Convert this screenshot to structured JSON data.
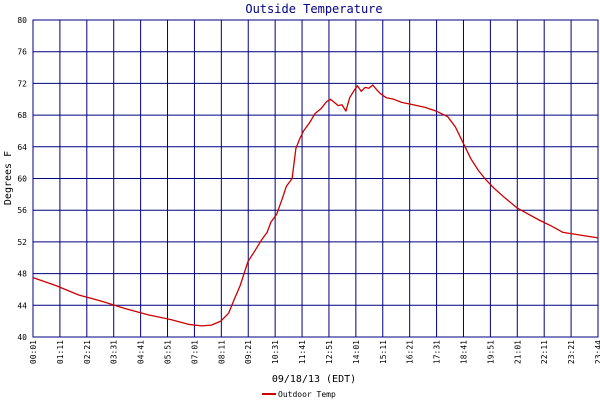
{
  "chart_data": {
    "type": "line",
    "title": "Outside Temperature",
    "xlabel": "09/18/13 (EDT)",
    "ylabel": "Degrees F",
    "ylim": [
      40,
      80
    ],
    "yticks": [
      40,
      44,
      48,
      52,
      56,
      60,
      64,
      68,
      72,
      76,
      80
    ],
    "xlim": [
      "00:01",
      "23:44"
    ],
    "xticks": [
      "00:01",
      "01:11",
      "02:21",
      "03:31",
      "04:41",
      "05:51",
      "07:01",
      "08:11",
      "09:21",
      "10:31",
      "11:41",
      "12:51",
      "14:01",
      "15:11",
      "16:21",
      "17:31",
      "18:41",
      "19:51",
      "21:01",
      "22:11",
      "23:21",
      "23:44"
    ],
    "grid": true,
    "legend_position": "bottom-left",
    "colors": {
      "line": "#cc0000",
      "grid": "#000080",
      "title": "#000080"
    },
    "series": [
      {
        "name": "Outdoor Temp",
        "x": [
          "00:01",
          "01:00",
          "02:00",
          "03:00",
          "04:00",
          "05:00",
          "06:00",
          "06:45",
          "07:20",
          "07:45",
          "08:10",
          "08:30",
          "08:45",
          "09:00",
          "09:20",
          "09:40",
          "09:55",
          "10:10",
          "10:20",
          "10:35",
          "10:50",
          "11:00",
          "11:15",
          "11:25",
          "11:35",
          "11:45",
          "12:00",
          "12:15",
          "12:30",
          "12:45",
          "12:55",
          "13:05",
          "13:15",
          "13:25",
          "13:35",
          "13:45",
          "13:55",
          "14:05",
          "14:15",
          "14:25",
          "14:35",
          "14:45",
          "14:55",
          "15:05",
          "15:20",
          "15:40",
          "16:00",
          "16:30",
          "17:00",
          "17:30",
          "18:00",
          "18:20",
          "18:40",
          "19:00",
          "19:20",
          "19:40",
          "20:00",
          "20:30",
          "21:00",
          "21:30",
          "22:00",
          "22:30",
          "23:00",
          "23:44"
        ],
        "y": [
          47.5,
          46.5,
          45.3,
          44.5,
          43.6,
          42.8,
          42.2,
          41.6,
          41.4,
          41.5,
          42.0,
          43.0,
          44.8,
          46.5,
          49.5,
          51.0,
          52.2,
          53.2,
          54.5,
          55.5,
          57.5,
          59.0,
          60.0,
          63.8,
          65.0,
          66.0,
          67.0,
          68.2,
          68.8,
          69.7,
          70.0,
          69.6,
          69.2,
          69.3,
          68.5,
          70.2,
          71.0,
          71.7,
          71.0,
          71.5,
          71.4,
          71.8,
          71.2,
          70.7,
          70.2,
          70.0,
          69.6,
          69.3,
          69.0,
          68.5,
          67.8,
          66.5,
          64.5,
          62.5,
          61.0,
          59.8,
          58.8,
          57.5,
          56.3,
          55.5,
          54.7,
          54.0,
          53.2,
          52.5
        ]
      }
    ]
  }
}
